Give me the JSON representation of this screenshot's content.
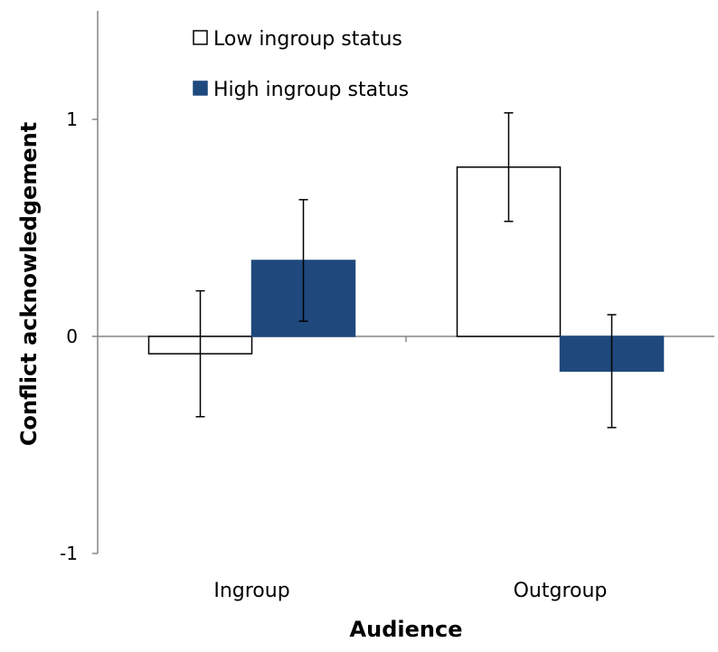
{
  "chart_data": {
    "type": "bar",
    "xlabel": "Audience",
    "ylabel": "Conflict acknowledgement",
    "categories": [
      "Ingroup",
      "Outgroup"
    ],
    "ylim": [
      -1,
      1.5
    ],
    "yticks": [
      -1,
      0,
      1
    ],
    "ytick_labels": [
      "-1",
      "0",
      "1"
    ],
    "grid": false,
    "legend_position": "top-left",
    "series": [
      {
        "name": "Low ingroup status",
        "values": [
          -0.08,
          0.78
        ],
        "error": [
          0.29,
          0.25
        ],
        "color": "#ffffff",
        "stroke": "#000000"
      },
      {
        "name": "High ingroup status",
        "values": [
          0.35,
          -0.16
        ],
        "error": [
          0.28,
          0.26
        ],
        "color": "#1f497d",
        "stroke": "#1f497d"
      }
    ]
  }
}
